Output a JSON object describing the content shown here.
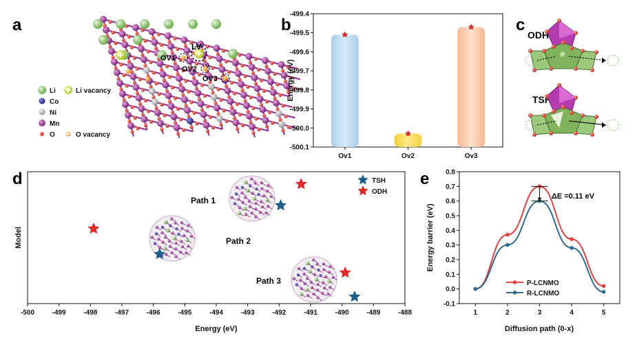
{
  "panel_labels": [
    "a",
    "b",
    "c",
    "d",
    "e"
  ],
  "panel_a": {
    "legend": [
      {
        "label": "Li",
        "color": "#8bc86a"
      },
      {
        "label": "Li vacancy",
        "color": "#d6e84a"
      },
      {
        "label": "Co",
        "color": "#2a2c8c"
      },
      {
        "label": "Ni",
        "color": "#b8b8b8"
      },
      {
        "label": "Mn",
        "color": "#8e2c8c"
      },
      {
        "label": "O",
        "color": "#d8332a"
      },
      {
        "label": "O vacancy",
        "color": "#f0a030"
      }
    ],
    "site_labels": [
      "LV",
      "OV1",
      "OV2",
      "OV3"
    ]
  },
  "panel_c": {
    "labels": [
      "ODH",
      "TSH"
    ]
  },
  "chart_data": [
    {
      "panel": "b",
      "type": "bar",
      "categories": [
        "Ov1",
        "Ov2",
        "Ov3"
      ],
      "values": [
        -499.51,
        -500.03,
        -499.47
      ],
      "colors": [
        "#b9d8ee",
        "#f7d95c",
        "#f8c7a4"
      ],
      "ylabel": "Energy (eV)",
      "ylim": [
        -500.1,
        -499.4
      ],
      "yticks": [
        "-499.4",
        "-499.5",
        "-499.6",
        "-499.7",
        "-499.8",
        "-499.9",
        "-500.0",
        "-500.1"
      ]
    },
    {
      "panel": "d",
      "type": "scatter",
      "xlabel": "Energy (eV)",
      "ylabel": "Model",
      "xlim": [
        -500,
        -488
      ],
      "xticks": [
        "-500",
        "-499",
        "-498",
        "-497",
        "-496",
        "-495",
        "-494",
        "-493",
        "-492",
        "-491",
        "-490",
        "-489",
        "-488"
      ],
      "series": [
        {
          "name": "TSH",
          "color": "#1f5e8a",
          "x": [
            -495.8,
            -491.95,
            -489.6
          ]
        },
        {
          "name": "ODH",
          "color": "#e02a2a",
          "x": [
            -497.9,
            -491.3,
            -489.9
          ]
        }
      ],
      "annotations": [
        "Path 1",
        "Path 2",
        "Path 3"
      ]
    },
    {
      "panel": "e",
      "type": "line",
      "xlabel": "Diffusion path (0-x)",
      "ylabel": "Energy barrier (eV)",
      "x": [
        1,
        2,
        3,
        4,
        5
      ],
      "xticks": [
        "1",
        "2",
        "3",
        "4",
        "5"
      ],
      "ylim": [
        -0.1,
        0.8
      ],
      "yticks": [
        "0.8",
        "0.7",
        "0.6",
        "0.5",
        "0.4",
        "0.3",
        "0.2",
        "0.1",
        "0.0",
        "-0.1"
      ],
      "series": [
        {
          "name": "P-LCNMO",
          "color": "#e04040",
          "values": [
            0.0,
            0.37,
            0.7,
            0.34,
            0.02
          ]
        },
        {
          "name": "R-LCNMO",
          "color": "#2f6b8e",
          "values": [
            0.0,
            0.3,
            0.6,
            0.28,
            -0.02
          ]
        }
      ],
      "annotation": "ΔE =0.11 eV"
    }
  ]
}
